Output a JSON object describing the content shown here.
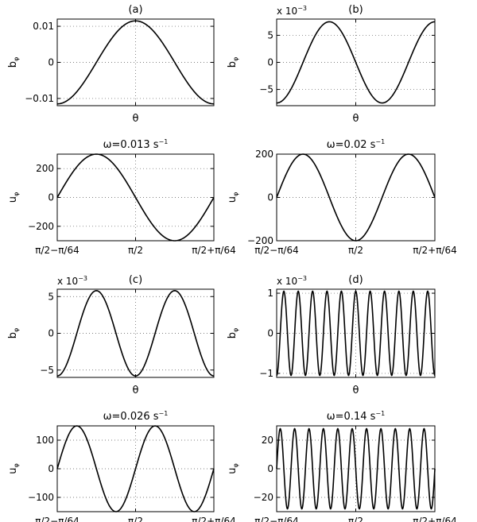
{
  "chart_data": [
    {
      "type": "line",
      "panel": "a",
      "title": "(a)",
      "ylabel": "b",
      "ylabel_sub": "φ",
      "xlabel": "θ",
      "ylim": [
        -0.012,
        0.012
      ],
      "yticks": [
        -0.01,
        0,
        0.01
      ],
      "yticklabels": [
        "−0.01",
        "0",
        "0.01"
      ],
      "xticklabels": [
        "",
        "",
        ""
      ],
      "multiplier": "",
      "series": [
        {
          "kind": "cos",
          "amplitude": 0.0115,
          "cycles": 1,
          "phase_cycles": 0.5
        }
      ]
    },
    {
      "type": "line",
      "panel": "a-u",
      "title": "ω=0.013 s",
      "title_sup": "−1",
      "ylabel": "u",
      "ylabel_sub": "φ",
      "xlabel": "",
      "ylim": [
        -300,
        300
      ],
      "yticks": [
        -200,
        0,
        200
      ],
      "yticklabels": [
        "−200",
        "0",
        "200"
      ],
      "xticklabels": [
        "π/2−π/64",
        "π/2",
        "π/2+π/64"
      ],
      "multiplier": "",
      "series": [
        {
          "kind": "sin",
          "amplitude": 300,
          "cycles": 1,
          "phase_cycles": 0
        }
      ]
    },
    {
      "type": "line",
      "panel": "b",
      "title": "(b)",
      "ylabel": "b",
      "ylabel_sub": "φ",
      "xlabel": "θ",
      "ylim": [
        -8,
        8
      ],
      "yticks": [
        -5,
        0,
        5
      ],
      "yticklabels": [
        "−5",
        "0",
        "5"
      ],
      "xticklabels": [
        "",
        "",
        ""
      ],
      "multiplier": "x 10",
      "multiplier_sup": "−3",
      "series": [
        {
          "kind": "cos",
          "amplitude": 7.5,
          "cycles": 1.5,
          "phase_cycles": 0.5
        }
      ]
    },
    {
      "type": "line",
      "panel": "b-u",
      "title": "ω=0.02 s",
      "title_sup": "−1",
      "ylabel": "u",
      "ylabel_sub": "φ",
      "xlabel": "",
      "ylim": [
        -200,
        200
      ],
      "yticks": [
        -200,
        0,
        200
      ],
      "yticklabels": [
        "−200",
        "0",
        "200"
      ],
      "xticklabels": [
        "π/2−π/64",
        "π/2",
        "π/2+π/64"
      ],
      "multiplier": "",
      "series": [
        {
          "kind": "sin",
          "amplitude": 200,
          "cycles": 1.5,
          "phase_cycles": 0
        }
      ]
    },
    {
      "type": "line",
      "panel": "c",
      "title": "(c)",
      "ylabel": "b",
      "ylabel_sub": "φ",
      "xlabel": "θ",
      "ylim": [
        -6,
        6
      ],
      "yticks": [
        -5,
        0,
        5
      ],
      "yticklabels": [
        "−5",
        "0",
        "5"
      ],
      "xticklabels": [
        "",
        "",
        ""
      ],
      "multiplier": "x 10",
      "multiplier_sup": "−3",
      "series": [
        {
          "kind": "cos",
          "amplitude": 5.8,
          "cycles": 2,
          "phase_cycles": 0.5
        }
      ]
    },
    {
      "type": "line",
      "panel": "c-u",
      "title": "ω=0.026 s",
      "title_sup": "−1",
      "ylabel": "u",
      "ylabel_sub": "φ",
      "xlabel": "",
      "ylim": [
        -150,
        150
      ],
      "yticks": [
        -100,
        0,
        100
      ],
      "yticklabels": [
        "−100",
        "0",
        "100"
      ],
      "xticklabels": [
        "π/2−π/64",
        "π/2",
        "π/2+π/64"
      ],
      "multiplier": "",
      "series": [
        {
          "kind": "sin",
          "amplitude": 150,
          "cycles": 2,
          "phase_cycles": 0
        }
      ]
    },
    {
      "type": "line",
      "panel": "d",
      "title": "(d)",
      "ylabel": "b",
      "ylabel_sub": "φ",
      "xlabel": "θ",
      "ylim": [
        -1.1,
        1.1
      ],
      "yticks": [
        -1,
        0,
        1
      ],
      "yticklabels": [
        "−1",
        "0",
        "1"
      ],
      "xticklabels": [
        "",
        "",
        ""
      ],
      "multiplier": "x 10",
      "multiplier_sup": "−3",
      "series": [
        {
          "kind": "cos",
          "amplitude": 1.05,
          "cycles": 11,
          "phase_cycles": 0.5
        }
      ]
    },
    {
      "type": "line",
      "panel": "d-u",
      "title": "ω=0.14 s",
      "title_sup": "−1",
      "ylabel": "u",
      "ylabel_sub": "φ",
      "xlabel": "",
      "ylim": [
        -30,
        30
      ],
      "yticks": [
        -20,
        0,
        20
      ],
      "yticklabels": [
        "−20",
        "0",
        "20"
      ],
      "xticklabels": [
        "π/2−π/64",
        "π/2",
        "π/2+π/64"
      ],
      "multiplier": "",
      "series": [
        {
          "kind": "sin",
          "amplitude": 28,
          "cycles": 11,
          "phase_cycles": 0
        }
      ]
    }
  ]
}
